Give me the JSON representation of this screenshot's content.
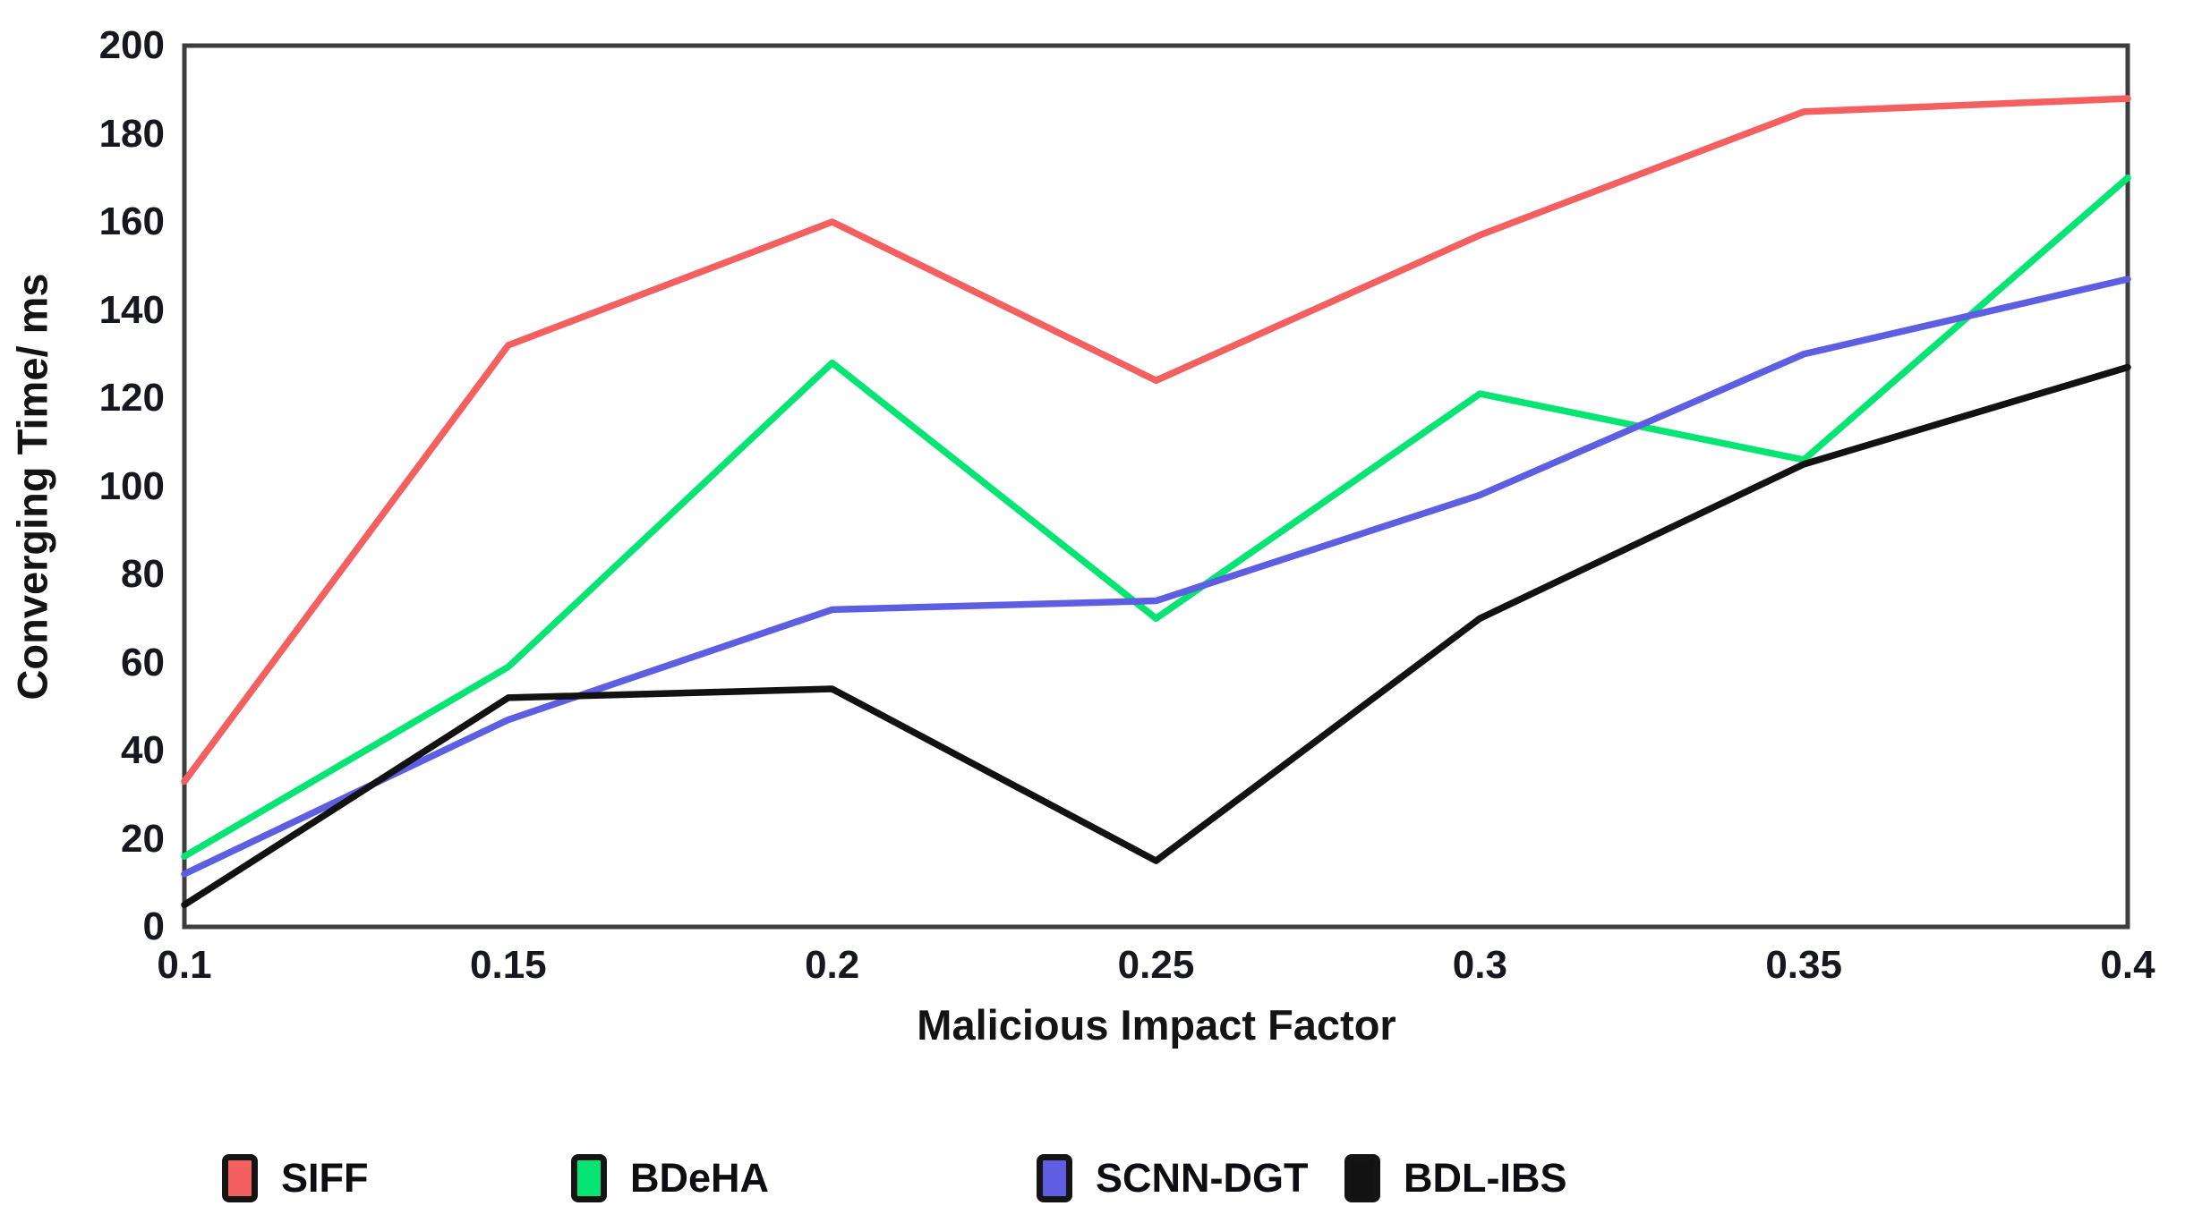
{
  "chart_data": {
    "type": "line",
    "title": "",
    "xlabel": "Malicious Impact Factor",
    "ylabel": "Converging Time/ ms",
    "categories": [
      "0.1",
      "0.15",
      "0.2",
      "0.25",
      "0.3",
      "0.35",
      "0.4"
    ],
    "x": [
      0.1,
      0.15,
      0.2,
      0.25,
      0.3,
      0.35,
      0.4
    ],
    "xlim": [
      0.1,
      0.4
    ],
    "ylim": [
      0,
      200
    ],
    "y_ticks": [
      0,
      20,
      40,
      60,
      80,
      100,
      120,
      140,
      160,
      180,
      200
    ],
    "grid": false,
    "legend_position": "bottom-left",
    "axis_color": "#3d3d3d",
    "tick_label_color": "#17171f",
    "series": [
      {
        "name": "SIFF",
        "color": "#f45f5f",
        "values": [
          33,
          132,
          160,
          124,
          157,
          185,
          188
        ]
      },
      {
        "name": "BDeHA",
        "color": "#06e474",
        "values": [
          16,
          59,
          128,
          70,
          121,
          106,
          170
        ]
      },
      {
        "name": "SCNN-DGT",
        "color": "#5e5ee2",
        "values": [
          12,
          47,
          72,
          74,
          98,
          130,
          147
        ]
      },
      {
        "name": "BDL-IBS",
        "color": "#121212",
        "values": [
          5,
          52,
          54,
          15,
          70,
          105,
          127
        ]
      }
    ]
  }
}
